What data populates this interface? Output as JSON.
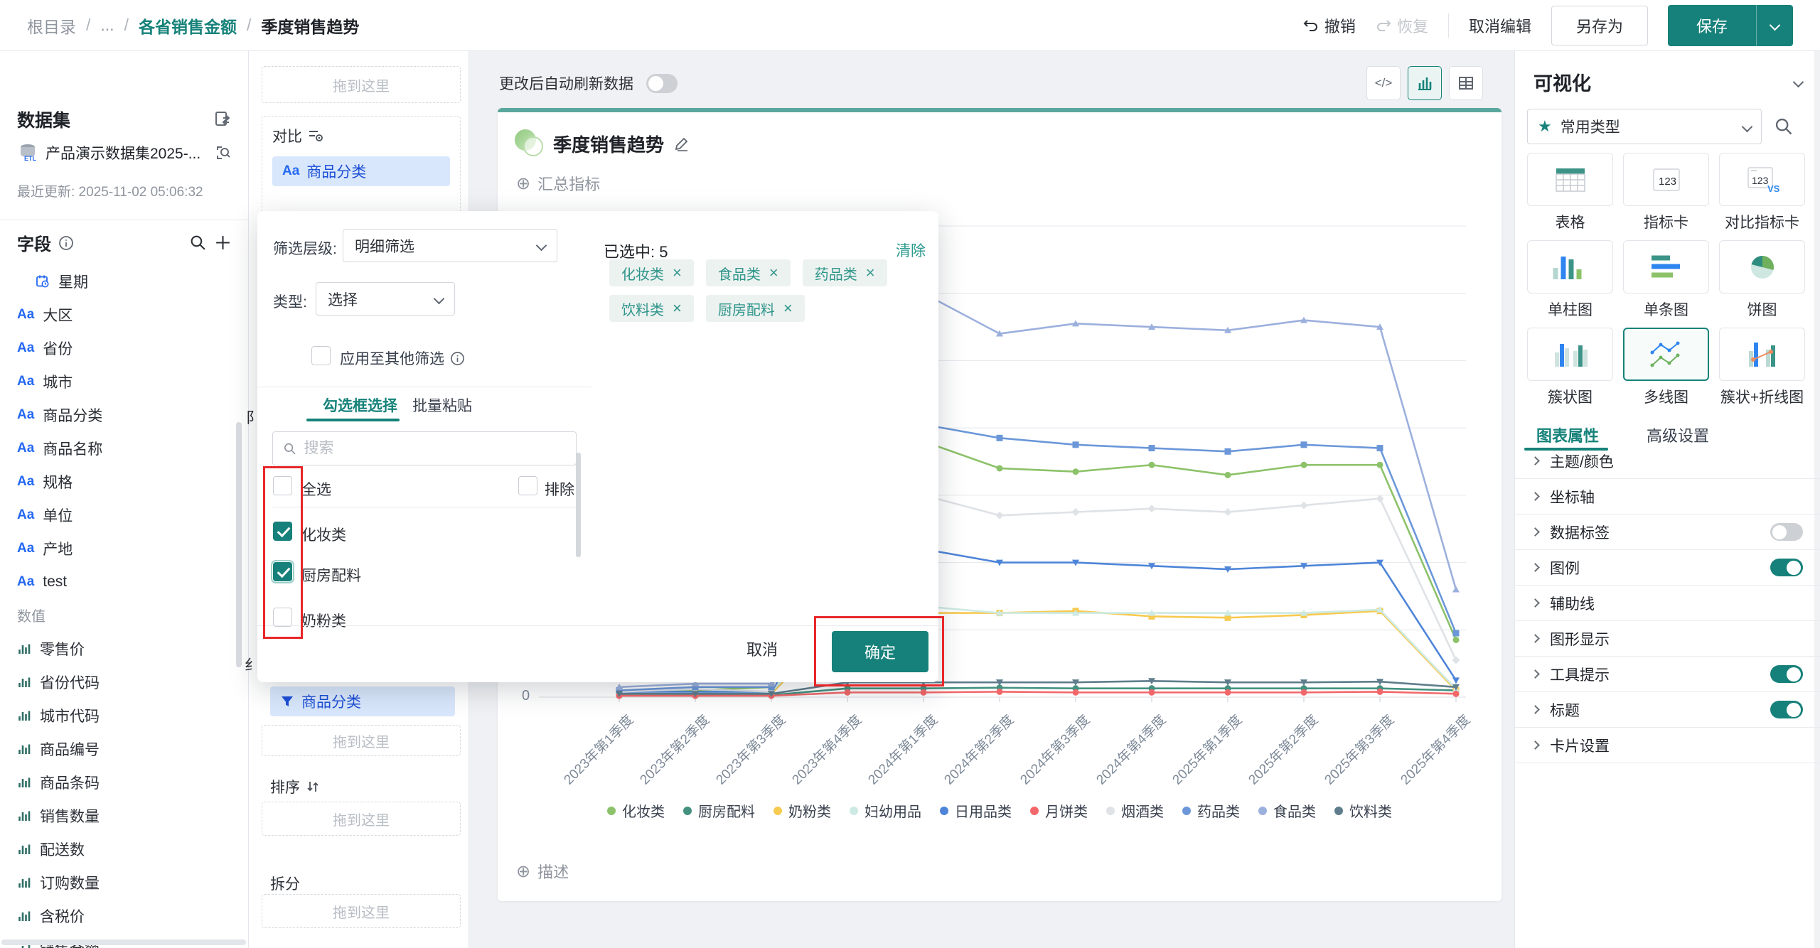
{
  "icons": {
    "close": "×",
    "plus_circle": "⊕",
    "star": "★",
    "text_field": "Aa",
    "info": "ⓘ",
    "code": "</>"
  },
  "header": {
    "breadcrumb": [
      "根目录",
      "...",
      "各省销售金额",
      "季度销售趋势"
    ],
    "undo": "撤销",
    "redo": "恢复",
    "cancel_edit": "取消编辑",
    "save_as": "另存为",
    "save": "保存"
  },
  "dataset_panel": {
    "title": "数据集",
    "dataset_name": "产品演示数据集2025-...",
    "updated": "最近更新: 2025-11-02 05:06:32",
    "fields_title": "字段",
    "dimension_fields": [
      {
        "type": "datetime",
        "label": "星期"
      },
      {
        "type": "text",
        "label": "大区"
      },
      {
        "type": "text",
        "label": "省份"
      },
      {
        "type": "text",
        "label": "城市"
      },
      {
        "type": "text",
        "label": "商品分类"
      },
      {
        "type": "text",
        "label": "商品名称"
      },
      {
        "type": "text",
        "label": "规格"
      },
      {
        "type": "text",
        "label": "单位"
      },
      {
        "type": "text",
        "label": "产地"
      },
      {
        "type": "text",
        "label": "test"
      }
    ],
    "values_title": "数值",
    "measure_fields": [
      "零售价",
      "省份代码",
      "城市代码",
      "商品编号",
      "商品条码",
      "销售数量",
      "配送数",
      "订购数量",
      "含税价",
      "销售金额"
    ]
  },
  "config_panel": {
    "dropzone": "拖到这里",
    "compare_label": "对比",
    "compare_chip": "商品分类",
    "filter_chip": "商品分类",
    "sort_label": "排序",
    "split_label": "拆分",
    "fragment_top": "阝",
    "fragment_bottom": "纟"
  },
  "canvas": {
    "auto_refresh": "更改后自动刷新数据",
    "card_title": "季度销售趋势",
    "add_metric": "汇总指标",
    "add_desc": "描述",
    "y_zero": "0"
  },
  "dialog": {
    "level_label": "筛选层级:",
    "level_value": "明细筛选",
    "type_label": "类型:",
    "type_value": "选择",
    "apply_label": "应用至其他筛选",
    "tab_checkbox": "勾选框选择",
    "tab_paste": "批量粘贴",
    "search_placeholder": "搜索",
    "select_all": "全选",
    "exclude": "排除",
    "options": [
      {
        "label": "化妆类",
        "checked": true
      },
      {
        "label": "厨房配料",
        "checked": true
      },
      {
        "label": "奶粉类",
        "checked": false
      }
    ],
    "selected_label": "已选中: 5",
    "clear": "清除",
    "chips": [
      "化妆类",
      "食品类",
      "药品类",
      "饮料类",
      "厨房配料"
    ],
    "cancel": "取消",
    "ok": "确定"
  },
  "viz_panel": {
    "title": "可视化",
    "category": "常用类型",
    "chart_types": [
      {
        "icon": "table",
        "label": "表格",
        "selected": false
      },
      {
        "icon": "kpi",
        "label": "指标卡",
        "selected": false
      },
      {
        "icon": "kpi-vs",
        "label": "对比指标卡",
        "selected": false
      },
      {
        "icon": "bar",
        "label": "单柱图",
        "selected": false
      },
      {
        "icon": "hbar",
        "label": "单条图",
        "selected": false
      },
      {
        "icon": "pie",
        "label": "饼图",
        "selected": false
      },
      {
        "icon": "cluster",
        "label": "簇状图",
        "selected": false
      },
      {
        "icon": "multiline",
        "label": "多线图",
        "selected": true
      },
      {
        "icon": "barline",
        "label": "簇状+折线图",
        "selected": false
      }
    ],
    "tab_props": "图表属性",
    "tab_advanced": "高级设置",
    "sections": [
      {
        "label": "主题/颜色"
      },
      {
        "label": "坐标轴"
      },
      {
        "label": "数据标签",
        "toggle": false
      },
      {
        "label": "图例",
        "toggle": true
      },
      {
        "label": "辅助线"
      },
      {
        "label": "图形显示"
      },
      {
        "label": "工具提示",
        "toggle": true
      },
      {
        "label": "标题",
        "toggle": true
      },
      {
        "label": "卡片设置"
      }
    ]
  },
  "chart_data": {
    "type": "line",
    "title": "季度销售趋势",
    "x": [
      "2023年第1季度",
      "2023年第2季度",
      "2023年第3季度",
      "2023年第4季度",
      "2024年第1季度",
      "2024年第2季度",
      "2024年第3季度",
      "2024年第4季度",
      "2025年第1季度",
      "2025年第2季度",
      "2025年第3季度",
      "2025年第4季度"
    ],
    "ylim": [
      0,
      72
    ],
    "grid_step": 10,
    "grid": true,
    "legend_position": "bottom",
    "visible_y_labels": [
      "0"
    ],
    "series": [
      {
        "name": "化妆类",
        "color": "#8cc269",
        "marker": "circle",
        "values": [
          1,
          1,
          1.5,
          34.5,
          38,
          34,
          33.5,
          34.5,
          33,
          34.5,
          34.5,
          8.5
        ]
      },
      {
        "name": "厨房配料",
        "color": "#43917f",
        "marker": "circle",
        "values": [
          0.3,
          0.3,
          0.3,
          1.3,
          1.3,
          1.4,
          1.3,
          1.3,
          1.3,
          1.3,
          1.3,
          1
        ]
      },
      {
        "name": "奶粉类",
        "color": "#f7ca50",
        "marker": "square",
        "values": [
          0.5,
          0.5,
          0.5,
          12,
          12.5,
          12.5,
          12.8,
          12,
          11.8,
          12.2,
          12.8,
          1
        ]
      },
      {
        "name": "妇幼用品",
        "color": "#cdeae4",
        "marker": "triangle",
        "values": [
          0.5,
          0.5,
          0.8,
          12.5,
          13.5,
          12.5,
          12.5,
          12.5,
          12.5,
          12.5,
          13,
          1.2
        ]
      },
      {
        "name": "日用品类",
        "color": "#4e85d8",
        "marker": "triangle-down",
        "values": [
          0.8,
          0.8,
          0.8,
          19.5,
          22,
          20,
          20,
          19.5,
          19,
          19.5,
          20,
          2.5
        ]
      },
      {
        "name": "月饼类",
        "color": "#f2686a",
        "marker": "circle",
        "values": [
          0.2,
          0.2,
          0.2,
          0.7,
          0.7,
          0.8,
          0.7,
          0.7,
          0.7,
          0.7,
          0.8,
          0.5
        ]
      },
      {
        "name": "烟酒类",
        "color": "#dfe2e6",
        "marker": "diamond",
        "values": [
          0.8,
          1.2,
          0.8,
          27.5,
          30,
          27,
          27.5,
          28,
          27.5,
          28.5,
          29.5,
          5.5
        ]
      },
      {
        "name": "药品类",
        "color": "#6b97d9",
        "marker": "square",
        "values": [
          1,
          1.5,
          1.5,
          37,
          40.5,
          38.5,
          37.5,
          37,
          36.5,
          37.5,
          37,
          9.5
        ]
      },
      {
        "name": "食品类",
        "color": "#9cb0dd",
        "marker": "triangle",
        "values": [
          1.5,
          2,
          2,
          55,
          60,
          54,
          55.5,
          55,
          54.5,
          56,
          55,
          16
        ]
      },
      {
        "name": "饮料类",
        "color": "#5f7d8c",
        "marker": "triangle-down",
        "values": [
          0.5,
          0.5,
          0.5,
          2.2,
          2.2,
          2.2,
          2.2,
          2.4,
          2.2,
          2.2,
          2.3,
          1.5
        ]
      }
    ]
  }
}
